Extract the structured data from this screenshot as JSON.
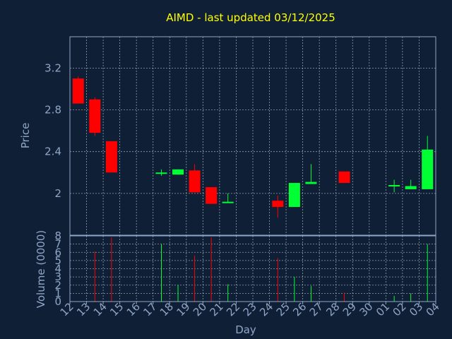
{
  "chart_data": {
    "type": "candlestick",
    "title": "AIMD - last updated 03/12/2025",
    "xlabel": "Day",
    "price_panel": {
      "ylabel": "Price",
      "ylim": [
        1.6,
        3.5
      ],
      "yticks": [
        2,
        2.4,
        2.8,
        3.2
      ],
      "ytick_labels": [
        "2",
        "2.4",
        "2.8",
        "3.2"
      ],
      "grid": true
    },
    "volume_panel": {
      "ylabel": "Volume (0000)",
      "ylim": [
        0,
        8
      ],
      "yticks": [
        0,
        1,
        2,
        3,
        4,
        5,
        6,
        7,
        8
      ],
      "ytick_labels": [
        "0",
        "1",
        "2",
        "3",
        "4",
        "5",
        "6",
        "7",
        "8"
      ],
      "grid": true
    },
    "x_tick_labels": [
      "12",
      "13",
      "14",
      "15",
      "16",
      "17",
      "18",
      "19",
      "20",
      "21",
      "22",
      "23",
      "24",
      "25",
      "26",
      "27",
      "28",
      "29",
      "30",
      "01",
      "02",
      "03",
      "04"
    ],
    "candles": [
      {
        "day": "12",
        "open": 3.1,
        "close": 2.86,
        "high": 3.12,
        "low": 2.86,
        "volume": 0
      },
      {
        "day": "13",
        "open": 2.9,
        "close": 2.58,
        "high": 2.92,
        "low": 2.55,
        "volume": 6.1
      },
      {
        "day": "14",
        "open": 2.5,
        "close": 2.2,
        "high": 2.5,
        "low": 2.2,
        "volume": 7.8
      },
      {
        "day": "17",
        "open": 2.19,
        "close": 2.2,
        "high": 2.23,
        "low": 2.17,
        "volume": 7.0
      },
      {
        "day": "18",
        "open": 2.18,
        "close": 2.23,
        "high": 2.23,
        "low": 2.18,
        "volume": 2.0
      },
      {
        "day": "19",
        "open": 2.22,
        "close": 2.01,
        "high": 2.28,
        "low": 2.01,
        "volume": 5.6
      },
      {
        "day": "20",
        "open": 2.06,
        "close": 1.9,
        "high": 2.06,
        "low": 1.9,
        "volume": 7.8
      },
      {
        "day": "21",
        "open": 1.91,
        "close": 1.92,
        "high": 2.0,
        "low": 1.91,
        "volume": 2.1
      },
      {
        "day": "24",
        "open": 1.93,
        "close": 1.87,
        "high": 1.98,
        "low": 1.77,
        "volume": 5.3
      },
      {
        "day": "25",
        "open": 1.87,
        "close": 2.1,
        "high": 2.1,
        "low": 1.87,
        "volume": 3.0
      },
      {
        "day": "26",
        "open": 2.09,
        "close": 2.11,
        "high": 2.28,
        "low": 2.09,
        "volume": 1.9
      },
      {
        "day": "28",
        "open": 2.21,
        "close": 2.1,
        "high": 2.21,
        "low": 2.1,
        "volume": 1.1
      },
      {
        "day": "01",
        "open": 2.07,
        "close": 2.08,
        "high": 2.13,
        "low": 2.01,
        "volume": 0.7
      },
      {
        "day": "02",
        "open": 2.04,
        "close": 2.07,
        "high": 2.13,
        "low": 2.04,
        "volume": 1.0
      },
      {
        "day": "03",
        "open": 2.04,
        "close": 2.42,
        "high": 2.55,
        "low": 2.04,
        "volume": 7.0
      }
    ]
  },
  "colors": {
    "background": "#0f1f35",
    "frame": "#8fa6c8",
    "grid": "#c8d4e6",
    "title": "#ffff00",
    "label": "#8fa6c8",
    "up": "#00ff33",
    "down": "#ff0000"
  }
}
